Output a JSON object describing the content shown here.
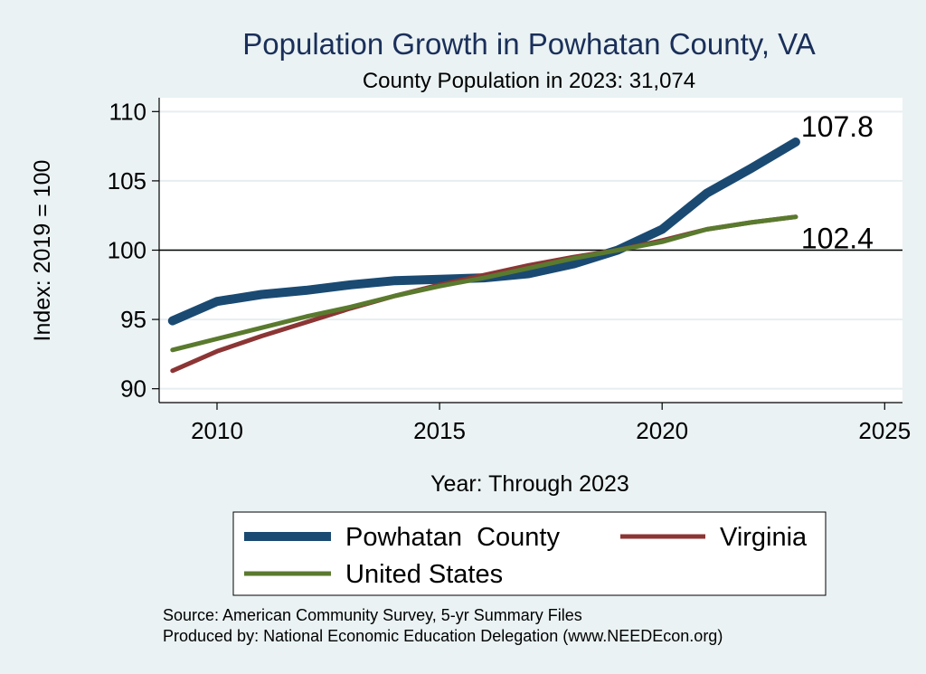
{
  "chart_data": {
    "type": "line",
    "title": "Population Growth in Powhatan County, VA",
    "subtitle": "County Population in 2023: 31,074",
    "xlabel": "Year: Through 2023",
    "ylabel": "Index: 2019 = 100",
    "xlim": [
      2008.7,
      2025.4
    ],
    "ylim": [
      89,
      111
    ],
    "xticks": [
      2010,
      2015,
      2020,
      2025
    ],
    "yticks": [
      90,
      95,
      100,
      105,
      110
    ],
    "reference_line": 100,
    "grid": true,
    "legend_position": "bottom",
    "series": [
      {
        "name": "Powhatan  County",
        "color": "#1a4a72",
        "x": [
          2009,
          2010,
          2011,
          2012,
          2013,
          2014,
          2015,
          2016,
          2017,
          2018,
          2019,
          2020,
          2021,
          2022,
          2023
        ],
        "values": [
          94.9,
          96.3,
          96.8,
          97.1,
          97.5,
          97.8,
          97.9,
          98.0,
          98.3,
          99.0,
          100.0,
          101.5,
          104.1,
          105.9,
          107.8
        ],
        "end_label": "107.8"
      },
      {
        "name": "Virginia",
        "color": "#8c3535",
        "x": [
          2009,
          2010,
          2011,
          2012,
          2013,
          2014,
          2015,
          2016,
          2017,
          2018,
          2019,
          2020,
          2021,
          2022,
          2023
        ],
        "values": [
          91.3,
          92.7,
          93.8,
          94.8,
          95.8,
          96.7,
          97.5,
          98.2,
          98.9,
          99.5,
          100.0,
          100.7,
          101.5,
          102.0,
          102.4
        ],
        "end_label": "102.4"
      },
      {
        "name": "United States",
        "color": "#5a7a2e",
        "x": [
          2009,
          2010,
          2011,
          2012,
          2013,
          2014,
          2015,
          2016,
          2017,
          2018,
          2019,
          2020,
          2021,
          2022,
          2023
        ],
        "values": [
          92.8,
          93.6,
          94.4,
          95.2,
          95.9,
          96.7,
          97.4,
          98.0,
          98.7,
          99.4,
          100.0,
          100.6,
          101.5,
          102.0,
          102.4
        ]
      }
    ],
    "legend": [
      {
        "label": "Powhatan  County",
        "color": "#1a4a72"
      },
      {
        "label": "Virginia",
        "color": "#8c3535"
      },
      {
        "label": "United States",
        "color": "#5a7a2e"
      }
    ],
    "notes": [
      "Source: American Community Survey, 5-yr Summary Files",
      "Produced by: National Economic Education Delegation (www.NEEDEcon.org)"
    ]
  }
}
